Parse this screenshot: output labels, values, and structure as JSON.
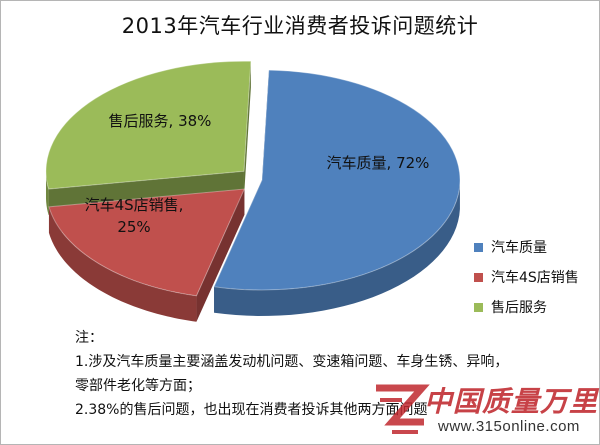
{
  "chart_data": {
    "type": "pie",
    "title": "2013年汽车行业消费者投诉问题统计",
    "slices": [
      {
        "name": "汽车质量",
        "value": 72,
        "label": "汽车质量, 72%",
        "color": "#4f81bd",
        "exploded": false
      },
      {
        "name": "汽车4S店销售",
        "value": 25,
        "label_lines": [
          "汽车4S店销售,",
          "25%"
        ],
        "color": "#c0504d",
        "exploded": true
      },
      {
        "name": "售后服务",
        "value": 38,
        "label": "售后服务, 38%",
        "color": "#9bbb59",
        "exploded": true
      }
    ],
    "legend": {
      "position": "right",
      "entries": [
        "汽车质量",
        "汽车4S店销售",
        "售后服务"
      ]
    },
    "grid": false
  },
  "notes": {
    "heading": "注：",
    "lines": [
      "1.涉及汽车质量主要涵盖发动机问题、变速箱问题、车身生锈、异响，",
      "零部件老化等方面；",
      "2.38%的售后问题，也出现在消费者投诉其他两方面问题"
    ]
  },
  "watermark": {
    "name": "中国质量万里行",
    "url": "www.315online.com",
    "colors": {
      "logo": "#c0282e",
      "text": "#333333"
    }
  }
}
